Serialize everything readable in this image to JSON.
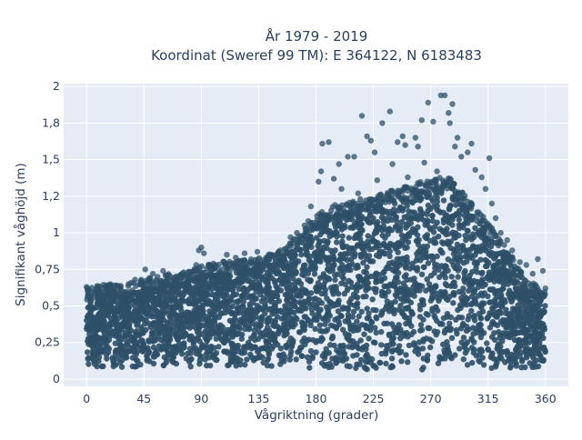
{
  "chart_data": {
    "type": "scatter",
    "title_line1": "År 1979 - 2019",
    "title_line2": "Koordinat (Sweref 99 TM): E 364122, N 6183483",
    "xlabel": "Vågriktning (grader)",
    "ylabel": "Signifikant våghöjd (m)",
    "xlim": [
      -18,
      378
    ],
    "ylim": [
      -0.05,
      2.02
    ],
    "xticks": [
      {
        "value": 0,
        "label": "0"
      },
      {
        "value": 45,
        "label": "45"
      },
      {
        "value": 90,
        "label": "90"
      },
      {
        "value": 135,
        "label": "135"
      },
      {
        "value": 180,
        "label": "180"
      },
      {
        "value": 225,
        "label": "225"
      },
      {
        "value": 270,
        "label": "270"
      },
      {
        "value": 315,
        "label": "315"
      },
      {
        "value": 360,
        "label": "360"
      }
    ],
    "yticks": [
      {
        "value": 0,
        "label": "0"
      },
      {
        "value": 0.25,
        "label": "0,25"
      },
      {
        "value": 0.5,
        "label": "0,5"
      },
      {
        "value": 0.75,
        "label": "0,75"
      },
      {
        "value": 1.0,
        "label": "1"
      },
      {
        "value": 1.25,
        "label": "1,2"
      },
      {
        "value": 1.5,
        "label": "1,5"
      },
      {
        "value": 1.75,
        "label": "1,8"
      },
      {
        "value": 2.0,
        "label": "2"
      }
    ],
    "grid": true,
    "plot_bgcolor": "#e5ecf6",
    "marker_color": "#2e5068",
    "envelope": [
      {
        "x": 0,
        "ymin": 0.08,
        "ymax": 0.55
      },
      {
        "x": 15,
        "ymin": 0.08,
        "ymax": 0.58
      },
      {
        "x": 30,
        "ymin": 0.08,
        "ymax": 0.58
      },
      {
        "x": 45,
        "ymin": 0.08,
        "ymax": 0.62
      },
      {
        "x": 60,
        "ymin": 0.08,
        "ymax": 0.64
      },
      {
        "x": 75,
        "ymin": 0.08,
        "ymax": 0.66
      },
      {
        "x": 90,
        "ymin": 0.08,
        "ymax": 0.7
      },
      {
        "x": 105,
        "ymin": 0.08,
        "ymax": 0.73
      },
      {
        "x": 120,
        "ymin": 0.08,
        "ymax": 0.74
      },
      {
        "x": 135,
        "ymin": 0.08,
        "ymax": 0.76
      },
      {
        "x": 150,
        "ymin": 0.08,
        "ymax": 0.8
      },
      {
        "x": 165,
        "ymin": 0.07,
        "ymax": 0.9
      },
      {
        "x": 180,
        "ymin": 0.07,
        "ymax": 1.05
      },
      {
        "x": 195,
        "ymin": 0.06,
        "ymax": 1.12
      },
      {
        "x": 210,
        "ymin": 0.06,
        "ymax": 1.15
      },
      {
        "x": 225,
        "ymin": 0.06,
        "ymax": 1.18
      },
      {
        "x": 240,
        "ymin": 0.06,
        "ymax": 1.22
      },
      {
        "x": 255,
        "ymin": 0.06,
        "ymax": 1.26
      },
      {
        "x": 270,
        "ymin": 0.06,
        "ymax": 1.3
      },
      {
        "x": 285,
        "ymin": 0.06,
        "ymax": 1.32
      },
      {
        "x": 300,
        "ymin": 0.06,
        "ymax": 1.15
      },
      {
        "x": 315,
        "ymin": 0.05,
        "ymax": 1.0
      },
      {
        "x": 330,
        "ymin": 0.06,
        "ymax": 0.82
      },
      {
        "x": 345,
        "ymin": 0.07,
        "ymax": 0.62
      },
      {
        "x": 360,
        "ymin": 0.08,
        "ymax": 0.52
      }
    ],
    "outliers": [
      {
        "x": 0,
        "y": 0.63
      },
      {
        "x": 10,
        "y": 0.6
      },
      {
        "x": 18,
        "y": 0.62
      },
      {
        "x": 22,
        "y": 0.6
      },
      {
        "x": 38,
        "y": 0.68
      },
      {
        "x": 46,
        "y": 0.75
      },
      {
        "x": 52,
        "y": 0.72
      },
      {
        "x": 60,
        "y": 0.74
      },
      {
        "x": 66,
        "y": 0.7
      },
      {
        "x": 75,
        "y": 0.7
      },
      {
        "x": 80,
        "y": 0.73
      },
      {
        "x": 86,
        "y": 0.78
      },
      {
        "x": 88,
        "y": 0.88
      },
      {
        "x": 90,
        "y": 0.9
      },
      {
        "x": 92,
        "y": 0.86
      },
      {
        "x": 97,
        "y": 0.78
      },
      {
        "x": 100,
        "y": 0.76
      },
      {
        "x": 110,
        "y": 0.85
      },
      {
        "x": 117,
        "y": 0.83
      },
      {
        "x": 124,
        "y": 0.86
      },
      {
        "x": 129,
        "y": 0.8
      },
      {
        "x": 134,
        "y": 0.87
      },
      {
        "x": 141,
        "y": 0.83
      },
      {
        "x": 150,
        "y": 0.86
      },
      {
        "x": 160,
        "y": 0.97
      },
      {
        "x": 165,
        "y": 1.0
      },
      {
        "x": 171,
        "y": 1.05
      },
      {
        "x": 174,
        "y": 1.08
      },
      {
        "x": 176,
        "y": 1.18
      },
      {
        "x": 182,
        "y": 1.35
      },
      {
        "x": 184,
        "y": 1.42
      },
      {
        "x": 185,
        "y": 1.61
      },
      {
        "x": 190,
        "y": 1.62
      },
      {
        "x": 194,
        "y": 1.37
      },
      {
        "x": 198,
        "y": 1.47
      },
      {
        "x": 200,
        "y": 1.3
      },
      {
        "x": 205,
        "y": 1.52
      },
      {
        "x": 210,
        "y": 1.52
      },
      {
        "x": 213,
        "y": 1.27
      },
      {
        "x": 216,
        "y": 1.8
      },
      {
        "x": 220,
        "y": 1.66
      },
      {
        "x": 223,
        "y": 1.63
      },
      {
        "x": 226,
        "y": 1.55
      },
      {
        "x": 228,
        "y": 1.36
      },
      {
        "x": 232,
        "y": 1.75
      },
      {
        "x": 238,
        "y": 1.83
      },
      {
        "x": 240,
        "y": 1.47
      },
      {
        "x": 244,
        "y": 1.62
      },
      {
        "x": 248,
        "y": 1.66
      },
      {
        "x": 250,
        "y": 1.6
      },
      {
        "x": 252,
        "y": 1.38
      },
      {
        "x": 258,
        "y": 1.65
      },
      {
        "x": 260,
        "y": 1.59
      },
      {
        "x": 263,
        "y": 1.77
      },
      {
        "x": 265,
        "y": 1.48
      },
      {
        "x": 268,
        "y": 1.89
      },
      {
        "x": 272,
        "y": 1.76
      },
      {
        "x": 275,
        "y": 1.42
      },
      {
        "x": 278,
        "y": 1.94
      },
      {
        "x": 281,
        "y": 1.94
      },
      {
        "x": 284,
        "y": 1.82
      },
      {
        "x": 285,
        "y": 1.75
      },
      {
        "x": 287,
        "y": 1.88
      },
      {
        "x": 289,
        "y": 1.59
      },
      {
        "x": 291,
        "y": 1.65
      },
      {
        "x": 294,
        "y": 1.52
      },
      {
        "x": 299,
        "y": 1.55
      },
      {
        "x": 302,
        "y": 1.61
      },
      {
        "x": 305,
        "y": 1.43
      },
      {
        "x": 310,
        "y": 1.38
      },
      {
        "x": 313,
        "y": 1.3
      },
      {
        "x": 316,
        "y": 1.51
      },
      {
        "x": 318,
        "y": 1.2
      },
      {
        "x": 321,
        "y": 1.1
      },
      {
        "x": 325,
        "y": 1.0
      },
      {
        "x": 330,
        "y": 0.95
      },
      {
        "x": 334,
        "y": 0.88
      },
      {
        "x": 340,
        "y": 0.8
      },
      {
        "x": 345,
        "y": 0.78
      },
      {
        "x": 350,
        "y": 0.72
      },
      {
        "x": 354,
        "y": 0.82
      },
      {
        "x": 358,
        "y": 0.74
      },
      {
        "x": 360,
        "y": 0.62
      }
    ]
  }
}
